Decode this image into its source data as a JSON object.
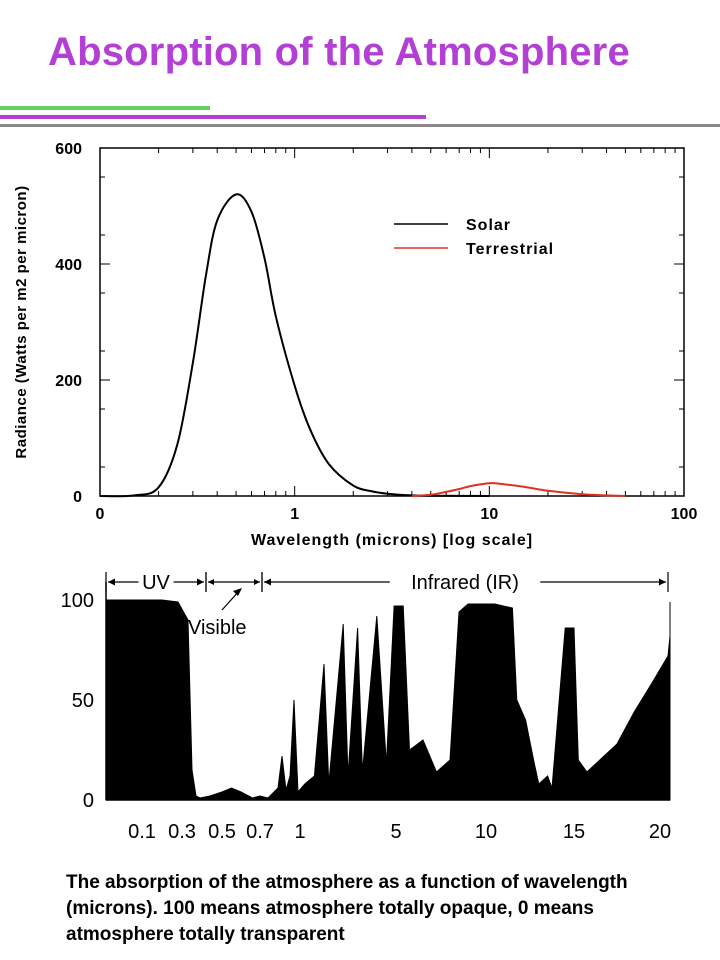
{
  "title": "Absorption of the Atmosphere",
  "caption": "The absorption of the atmosphere as a function of wavelength (microns). 100 means atmosphere totally opaque, 0 means atmosphere totally transparent",
  "colors": {
    "title": "#b43fd4",
    "solar": "#000000",
    "terrestrial": "#e0301e"
  },
  "chart_data": [
    {
      "type": "line",
      "title": "",
      "xlabel": "Wavelength (microns) [log scale]",
      "ylabel": "Radiance (Watts per m2 per micron)",
      "xscale": "log",
      "x_ticks": [
        "0",
        "1",
        "10",
        "100"
      ],
      "y_ticks": [
        0,
        200,
        400,
        600
      ],
      "ylim": [
        0,
        600
      ],
      "legend": "top-right",
      "series": [
        {
          "name": "Solar",
          "color": "#000000",
          "x": [
            0.1,
            0.15,
            0.2,
            0.25,
            0.3,
            0.35,
            0.4,
            0.5,
            0.6,
            0.7,
            0.8,
            1.0,
            1.2,
            1.5,
            2.0,
            2.5,
            3.0,
            4.0,
            5.0,
            10.0
          ],
          "y": [
            0,
            1,
            15,
            90,
            230,
            380,
            475,
            520,
            490,
            410,
            310,
            190,
            115,
            55,
            18,
            8,
            4,
            1,
            0.4,
            0
          ]
        },
        {
          "name": "Terrestrial",
          "color": "#e0301e",
          "x": [
            4,
            5,
            6,
            7,
            8,
            10,
            12,
            15,
            20,
            30,
            40,
            50
          ],
          "y": [
            0,
            2,
            7,
            12,
            17,
            22,
            20,
            16,
            9,
            3,
            1,
            0
          ]
        }
      ]
    },
    {
      "type": "area",
      "title": "",
      "ylabel": "",
      "x_ticks": [
        "0.1",
        "0.3",
        "0.5",
        "0.7",
        "1",
        "5",
        "10",
        "15",
        "20"
      ],
      "y_ticks": [
        0,
        50,
        100
      ],
      "ylim": [
        0,
        100
      ],
      "bands": [
        {
          "label": "UV",
          "from": "0.1",
          "to": "0.3"
        },
        {
          "label": "Visible",
          "from": "0.3",
          "to": "0.7"
        },
        {
          "label": "Infrared (IR)",
          "from": "0.7",
          "to": "20"
        }
      ],
      "series": [
        {
          "name": "",
          "values": [
            [
              0.0,
              100
            ],
            [
              0.5,
              100
            ],
            [
              0.9,
              99
            ],
            [
              1.15,
              90
            ],
            [
              1.25,
              15
            ],
            [
              1.35,
              2
            ],
            [
              1.45,
              1
            ],
            [
              1.7,
              2
            ],
            [
              2.0,
              4
            ],
            [
              2.25,
              6
            ],
            [
              2.5,
              4
            ],
            [
              2.8,
              1
            ],
            [
              3.0,
              2
            ],
            [
              3.2,
              1
            ],
            [
              3.45,
              6
            ],
            [
              3.55,
              22
            ],
            [
              3.65,
              5
            ],
            [
              3.75,
              12
            ],
            [
              3.85,
              50
            ],
            [
              3.95,
              4
            ],
            [
              4.05,
              8
            ],
            [
              4.15,
              12
            ],
            [
              4.25,
              68
            ],
            [
              4.3,
              8
            ],
            [
              4.45,
              88
            ],
            [
              4.5,
              12
            ],
            [
              4.6,
              86
            ],
            [
              4.65,
              14
            ],
            [
              4.8,
              92
            ],
            [
              4.9,
              18
            ],
            [
              4.98,
              97
            ],
            [
              5.08,
              97
            ],
            [
              5.15,
              25
            ],
            [
              5.3,
              30
            ],
            [
              5.45,
              14
            ],
            [
              5.6,
              20
            ],
            [
              5.7,
              94
            ],
            [
              5.8,
              98
            ],
            [
              5.95,
              98
            ],
            [
              6.1,
              98
            ],
            [
              6.3,
              96
            ],
            [
              6.35,
              50
            ],
            [
              6.45,
              40
            ],
            [
              6.55,
              18
            ],
            [
              6.6,
              8
            ],
            [
              6.7,
              12
            ],
            [
              6.75,
              6
            ],
            [
              6.9,
              86
            ],
            [
              7.0,
              86
            ],
            [
              7.05,
              20
            ],
            [
              7.15,
              14
            ],
            [
              7.3,
              20
            ],
            [
              7.5,
              28
            ],
            [
              7.7,
              44
            ],
            [
              7.9,
              58
            ],
            [
              8.1,
              72
            ],
            [
              8.2,
              82
            ],
            [
              8.3,
              76
            ],
            [
              8.4,
              78
            ],
            [
              8.6,
              80
            ],
            [
              8.8,
              84
            ],
            [
              9.0,
              88
            ],
            [
              9.2,
              94
            ],
            [
              9.5,
              99
            ],
            [
              9.7,
              97
            ],
            [
              10.0,
              99
            ]
          ]
        }
      ]
    }
  ]
}
